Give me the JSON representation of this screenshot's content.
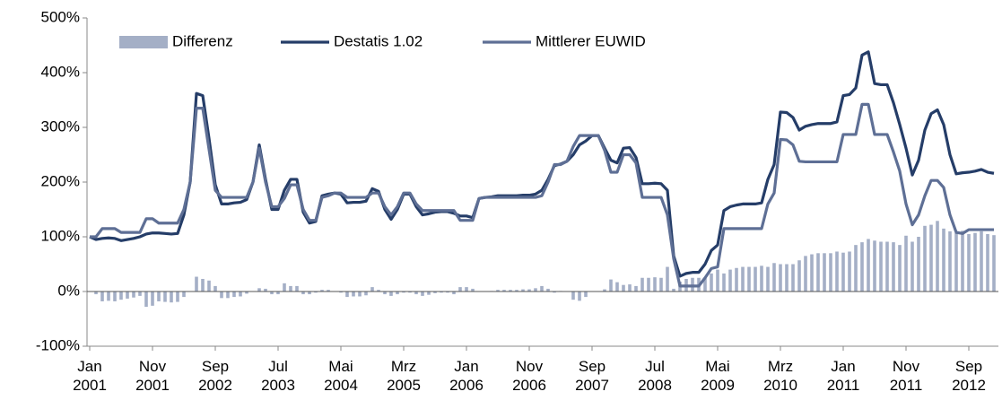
{
  "chart_data": {
    "type": "line",
    "categories": [
      "Jan 2001",
      null,
      null,
      null,
      null,
      null,
      null,
      null,
      null,
      null,
      "Nov 2001",
      null,
      null,
      null,
      null,
      null,
      null,
      null,
      null,
      null,
      "Sep 2002",
      null,
      null,
      null,
      null,
      null,
      null,
      null,
      null,
      null,
      "Jul 2003",
      null,
      null,
      null,
      null,
      null,
      null,
      null,
      null,
      null,
      "Mai 2004",
      null,
      null,
      null,
      null,
      null,
      null,
      null,
      null,
      null,
      "Mrz 2005",
      null,
      null,
      null,
      null,
      null,
      null,
      null,
      null,
      null,
      "Jan 2006",
      null,
      null,
      null,
      null,
      null,
      null,
      null,
      null,
      null,
      "Nov 2006",
      null,
      null,
      null,
      null,
      null,
      null,
      null,
      null,
      null,
      "Sep 2007",
      null,
      null,
      null,
      null,
      null,
      null,
      null,
      null,
      null,
      "Jul 2008",
      null,
      null,
      null,
      null,
      null,
      null,
      null,
      null,
      null,
      "Mai 2009",
      null,
      null,
      null,
      null,
      null,
      null,
      null,
      null,
      null,
      "Mrz 2010",
      null,
      null,
      null,
      null,
      null,
      null,
      null,
      null,
      null,
      "Jan 2011",
      null,
      null,
      null,
      null,
      null,
      null,
      null,
      null,
      null,
      "Nov 2011",
      null,
      null,
      null,
      null,
      null,
      null,
      null,
      null,
      null,
      "Sep 2012",
      null,
      null,
      null,
      null
    ],
    "series": [
      {
        "name": "Differenz",
        "type": "bar",
        "color": "#a4afc6",
        "values": [
          0,
          -5,
          -18,
          -17,
          -18,
          -15,
          -13,
          -11,
          -8,
          -28,
          -26,
          -18,
          -19,
          -20,
          -19,
          -10,
          0,
          27,
          23,
          20,
          10,
          -12,
          -12,
          -10,
          -9,
          -4,
          0,
          6,
          5,
          -5,
          -5,
          15,
          10,
          10,
          -5,
          -5,
          -2,
          3,
          3,
          0,
          -2,
          -10,
          -9,
          -9,
          -7,
          8,
          3,
          -5,
          -8,
          -5,
          -2,
          -2,
          -5,
          -8,
          -6,
          -3,
          -2,
          -2,
          -5,
          8,
          8,
          5,
          0,
          0,
          1,
          3,
          3,
          3,
          3,
          4,
          4,
          6,
          10,
          5,
          -2,
          1,
          0,
          -15,
          -17,
          -10,
          0,
          0,
          4,
          22,
          17,
          12,
          13,
          10,
          25,
          25,
          26,
          25,
          45,
          5,
          18,
          23,
          25,
          25,
          25,
          33,
          40,
          33,
          40,
          43,
          45,
          45,
          45,
          47,
          45,
          52,
          50,
          50,
          50,
          57,
          65,
          68,
          70,
          70,
          70,
          73,
          71,
          73,
          85,
          90,
          96,
          93,
          91,
          91,
          90,
          85,
          102,
          91,
          100,
          120,
          122,
          129,
          115,
          110,
          107,
          111,
          105,
          107,
          110,
          105,
          103
        ]
      },
      {
        "name": "Destatis 1.02",
        "type": "line",
        "color": "#253d68",
        "values": [
          100,
          95,
          97,
          98,
          97,
          93,
          95,
          97,
          100,
          105,
          107,
          107,
          106,
          105,
          106,
          140,
          200,
          362,
          358,
          280,
          195,
          160,
          160,
          162,
          163,
          168,
          200,
          268,
          205,
          150,
          150,
          185,
          205,
          205,
          145,
          125,
          128,
          175,
          178,
          180,
          178,
          162,
          163,
          163,
          165,
          188,
          183,
          150,
          132,
          150,
          178,
          178,
          155,
          140,
          142,
          145,
          146,
          146,
          143,
          138,
          138,
          135,
          170,
          172,
          173,
          175,
          175,
          175,
          175,
          176,
          176,
          178,
          185,
          205,
          230,
          233,
          238,
          250,
          268,
          275,
          285,
          285,
          262,
          240,
          235,
          262,
          263,
          245,
          197,
          197,
          198,
          197,
          185,
          65,
          28,
          33,
          35,
          35,
          50,
          75,
          85,
          148,
          155,
          158,
          160,
          160,
          160,
          162,
          205,
          232,
          328,
          327,
          318,
          295,
          302,
          305,
          307,
          307,
          307,
          310,
          358,
          360,
          372,
          432,
          438,
          380,
          378,
          378,
          345,
          305,
          262,
          213,
          240,
          295,
          325,
          332,
          305,
          250,
          215,
          217,
          218,
          220,
          223,
          218,
          216
        ]
      },
      {
        "name": "Mittlerer EUWID",
        "type": "line",
        "color": "#5e6f95",
        "values": [
          100,
          100,
          115,
          115,
          115,
          108,
          108,
          108,
          108,
          133,
          133,
          125,
          125,
          125,
          125,
          150,
          200,
          335,
          335,
          260,
          185,
          172,
          172,
          172,
          172,
          172,
          200,
          262,
          200,
          155,
          155,
          170,
          195,
          195,
          150,
          130,
          130,
          172,
          175,
          180,
          180,
          172,
          172,
          172,
          172,
          180,
          180,
          155,
          140,
          155,
          180,
          180,
          160,
          148,
          148,
          148,
          148,
          148,
          148,
          130,
          130,
          130,
          170,
          172,
          172,
          172,
          172,
          172,
          172,
          172,
          172,
          172,
          175,
          200,
          232,
          232,
          238,
          265,
          285,
          285,
          285,
          285,
          258,
          218,
          218,
          250,
          250,
          235,
          172,
          172,
          172,
          172,
          140,
          60,
          10,
          10,
          10,
          10,
          25,
          42,
          45,
          115,
          115,
          115,
          115,
          115,
          115,
          115,
          160,
          180,
          278,
          277,
          268,
          238,
          237,
          237,
          237,
          237,
          237,
          237,
          287,
          287,
          287,
          342,
          342,
          287,
          287,
          287,
          255,
          220,
          160,
          122,
          140,
          175,
          203,
          203,
          190,
          140,
          108,
          106,
          113,
          113,
          113,
          113,
          113
        ]
      }
    ],
    "ylim": [
      -100,
      500
    ],
    "yticks": [
      {
        "value": -100,
        "label": "-100%"
      },
      {
        "value": 0,
        "label": "0%"
      },
      {
        "value": 100,
        "label": "100%"
      },
      {
        "value": 200,
        "label": "200%"
      },
      {
        "value": 300,
        "label": "300%"
      },
      {
        "value": 400,
        "label": "400%"
      },
      {
        "value": 500,
        "label": "500%"
      }
    ],
    "grid": false,
    "legend": "top"
  }
}
